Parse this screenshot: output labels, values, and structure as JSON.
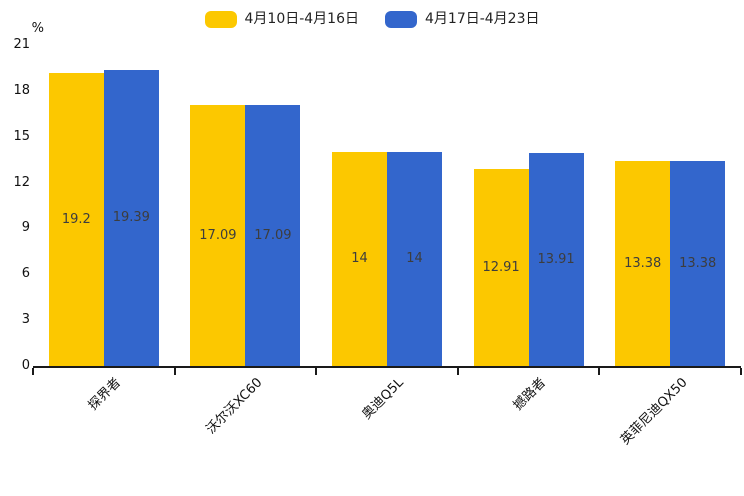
{
  "chart_data": {
    "type": "bar",
    "title": "",
    "categories": [
      "探界者",
      "沃尔沃XC60",
      "奥迪Q5L",
      "撼路者",
      "英菲尼迪QX50"
    ],
    "series": [
      {
        "name": "4月10日-4月16日",
        "color": "#FCC800",
        "values": [
          19.2,
          17.09,
          14,
          12.91,
          13.38
        ]
      },
      {
        "name": "4月17日-4月23日",
        "color": "#3366CC",
        "values": [
          19.39,
          17.09,
          14,
          13.91,
          13.38
        ]
      }
    ],
    "xlabel": "",
    "ylabel": "%",
    "yticks": [
      0,
      3,
      6,
      9,
      12,
      15,
      18,
      21
    ],
    "ylim": [
      0,
      21
    ],
    "grid": false,
    "legend_position": "top",
    "x_label_rotation": -45,
    "bar_label_color": "#3d3d3d",
    "axis_color": "#1a1a1a",
    "tick_text_color": "#111111"
  }
}
